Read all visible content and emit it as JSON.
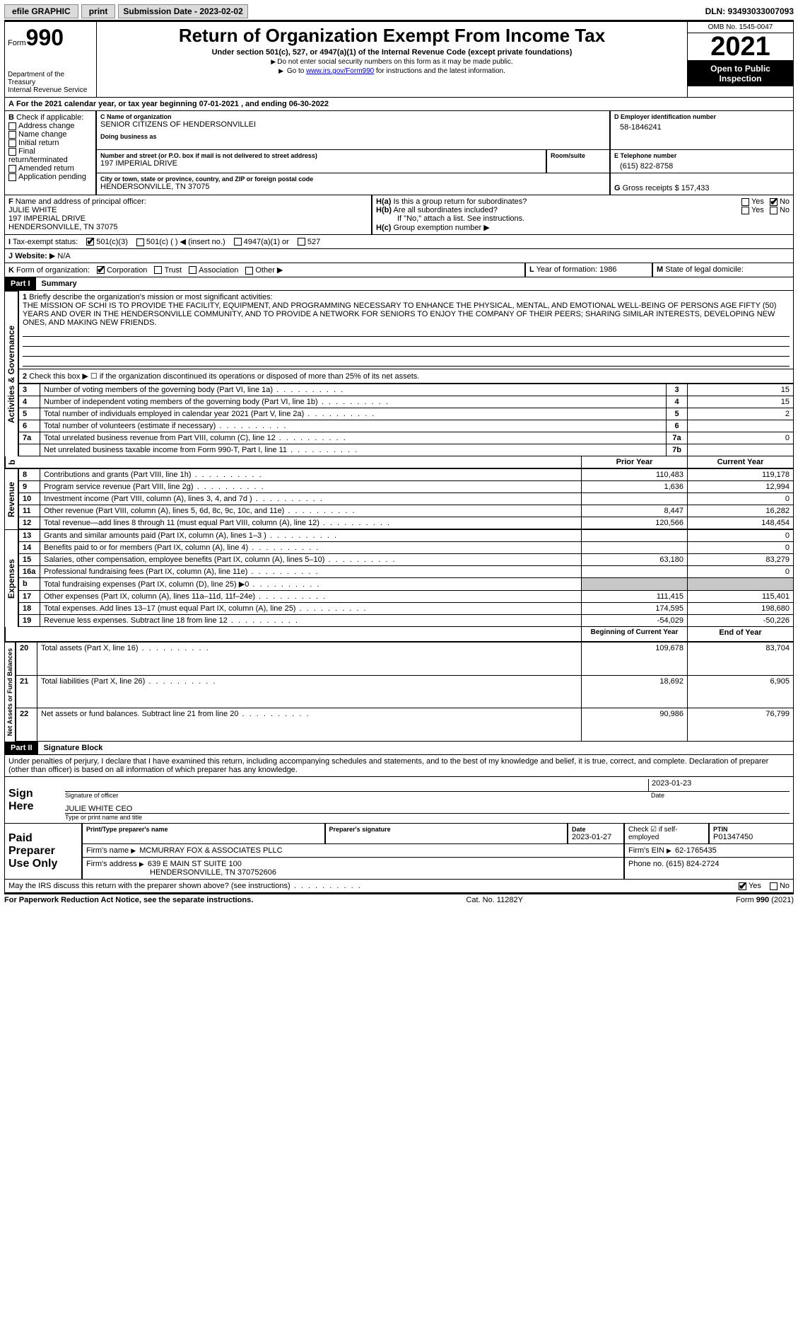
{
  "topbar": {
    "efile": "efile GRAPHIC",
    "print": "print",
    "sub_label": "Submission Date - 2023-02-02",
    "dln": "DLN: 93493033007093"
  },
  "header": {
    "form": "Form",
    "form_no": "990",
    "dept": "Department of the Treasury\nInternal Revenue Service",
    "title": "Return of Organization Exempt From Income Tax",
    "sub1": "Under section 501(c), 527, or 4947(a)(1) of the Internal Revenue Code (except private foundations)",
    "sub2": "Do not enter social security numbers on this form as it may be made public.",
    "sub3_a": "Go to ",
    "sub3_link": "www.irs.gov/Form990",
    "sub3_b": " for instructions and the latest information.",
    "omb": "OMB No. 1545-0047",
    "year": "2021",
    "open": "Open to Public Inspection"
  },
  "A": {
    "text": "For the 2021 calendar year, or tax year beginning 07-01-2021    , and ending 06-30-2022"
  },
  "B": {
    "label": "Check if applicable:",
    "items": [
      "Address change",
      "Name change",
      "Initial return",
      "Final return/terminated",
      "Amended return",
      "Application pending"
    ]
  },
  "C": {
    "name_lbl": "Name of organization",
    "name": "SENIOR CITIZENS OF HENDERSONVILLEI",
    "dba_lbl": "Doing business as",
    "street_lbl": "Number and street (or P.O. box if mail is not delivered to street address)",
    "street": "197 IMPERIAL DRIVE",
    "room_lbl": "Room/suite",
    "city_lbl": "City or town, state or province, country, and ZIP or foreign postal code",
    "city": "HENDERSONVILLE, TN  37075"
  },
  "D": {
    "lbl": "Employer identification number",
    "val": "58-1846241"
  },
  "E": {
    "lbl": "Telephone number",
    "val": "(615) 822-8758"
  },
  "G": {
    "lbl": "Gross receipts $",
    "val": "157,433"
  },
  "F": {
    "lbl": "Name and address of principal officer:",
    "name": "JULIE WHITE",
    "street": "197 IMPERIAL DRIVE",
    "city": "HENDERSONVILLE, TN  37075"
  },
  "H": {
    "a": "Is this a group return for subordinates?",
    "b": "Are all subordinates included?",
    "note": "If \"No,\" attach a list. See instructions.",
    "c": "Group exemption number",
    "yes": "Yes",
    "no": "No"
  },
  "I": {
    "lbl": "Tax-exempt status:",
    "opts": [
      "501(c)(3)",
      "501(c) (   ) ◀ (insert no.)",
      "4947(a)(1) or",
      "527"
    ]
  },
  "J": {
    "lbl": "Website:",
    "val": "N/A"
  },
  "K": {
    "lbl": "Form of organization:",
    "opts": [
      "Corporation",
      "Trust",
      "Association",
      "Other"
    ]
  },
  "L": {
    "lbl": "Year of formation:",
    "val": "1986"
  },
  "M": {
    "lbl": "State of legal domicile:"
  },
  "part1": {
    "hdr": "Part I",
    "title": "Summary",
    "q1_lbl": "Briefly describe the organization's mission or most significant activities:",
    "q1": "THE MISSION OF SCHI IS TO PROVIDE THE FACILITY, EQUIPMENT, AND PROGRAMMING NECESSARY TO ENHANCE THE PHYSICAL, MENTAL, AND EMOTIONAL WELL-BEING OF PERSONS AGE FIFTY (50) YEARS AND OVER IN THE HENDERSONVILLE COMMUNITY, AND TO PROVIDE A NETWORK FOR SENIORS TO ENJOY THE COMPANY OF THEIR PEERS; SHARING SIMILAR INTERESTS, DEVELOPING NEW ONES, AND MAKING NEW FRIENDS.",
    "q2": "Check this box ▶ ☐ if the organization discontinued its operations or disposed of more than 25% of its net assets.",
    "rows_gov": [
      {
        "n": "3",
        "t": "Number of voting members of the governing body (Part VI, line 1a)",
        "b": "3",
        "v": "15"
      },
      {
        "n": "4",
        "t": "Number of independent voting members of the governing body (Part VI, line 1b)",
        "b": "4",
        "v": "15"
      },
      {
        "n": "5",
        "t": "Total number of individuals employed in calendar year 2021 (Part V, line 2a)",
        "b": "5",
        "v": "2"
      },
      {
        "n": "6",
        "t": "Total number of volunteers (estimate if necessary)",
        "b": "6",
        "v": ""
      },
      {
        "n": "7a",
        "t": "Total unrelated business revenue from Part VIII, column (C), line 12",
        "b": "7a",
        "v": "0"
      },
      {
        "n": "",
        "t": "Net unrelated business taxable income from Form 990-T, Part I, line 11",
        "b": "7b",
        "v": ""
      }
    ],
    "col_prior": "Prior Year",
    "col_curr": "Current Year",
    "rows_rev": [
      {
        "n": "8",
        "t": "Contributions and grants (Part VIII, line 1h)",
        "p": "110,483",
        "c": "119,178"
      },
      {
        "n": "9",
        "t": "Program service revenue (Part VIII, line 2g)",
        "p": "1,636",
        "c": "12,994"
      },
      {
        "n": "10",
        "t": "Investment income (Part VIII, column (A), lines 3, 4, and 7d )",
        "p": "",
        "c": "0"
      },
      {
        "n": "11",
        "t": "Other revenue (Part VIII, column (A), lines 5, 6d, 8c, 9c, 10c, and 11e)",
        "p": "8,447",
        "c": "16,282"
      },
      {
        "n": "12",
        "t": "Total revenue—add lines 8 through 11 (must equal Part VIII, column (A), line 12)",
        "p": "120,566",
        "c": "148,454"
      }
    ],
    "rows_exp": [
      {
        "n": "13",
        "t": "Grants and similar amounts paid (Part IX, column (A), lines 1–3 )",
        "p": "",
        "c": "0"
      },
      {
        "n": "14",
        "t": "Benefits paid to or for members (Part IX, column (A), line 4)",
        "p": "",
        "c": "0"
      },
      {
        "n": "15",
        "t": "Salaries, other compensation, employee benefits (Part IX, column (A), lines 5–10)",
        "p": "63,180",
        "c": "83,279"
      },
      {
        "n": "16a",
        "t": "Professional fundraising fees (Part IX, column (A), line 11e)",
        "p": "",
        "c": "0"
      },
      {
        "n": "b",
        "t": "Total fundraising expenses (Part IX, column (D), line 25) ▶0",
        "p": "SHADE",
        "c": "SHADE"
      },
      {
        "n": "17",
        "t": "Other expenses (Part IX, column (A), lines 11a–11d, 11f–24e)",
        "p": "111,415",
        "c": "115,401"
      },
      {
        "n": "18",
        "t": "Total expenses. Add lines 13–17 (must equal Part IX, column (A), line 25)",
        "p": "174,595",
        "c": "198,680"
      },
      {
        "n": "19",
        "t": "Revenue less expenses. Subtract line 18 from line 12",
        "p": "-54,029",
        "c": "-50,226"
      }
    ],
    "col_beg": "Beginning of Current Year",
    "col_end": "End of Year",
    "rows_net": [
      {
        "n": "20",
        "t": "Total assets (Part X, line 16)",
        "p": "109,678",
        "c": "83,704"
      },
      {
        "n": "21",
        "t": "Total liabilities (Part X, line 26)",
        "p": "18,692",
        "c": "6,905"
      },
      {
        "n": "22",
        "t": "Net assets or fund balances. Subtract line 21 from line 20",
        "p": "90,986",
        "c": "76,799"
      }
    ],
    "vtabs": [
      "Activities & Governance",
      "Revenue",
      "Expenses",
      "Net Assets or Fund Balances"
    ]
  },
  "part2": {
    "hdr": "Part II",
    "title": "Signature Block",
    "decl": "Under penalties of perjury, I declare that I have examined this return, including accompanying schedules and statements, and to the best of my knowledge and belief, it is true, correct, and complete. Declaration of preparer (other than officer) is based on all information of which preparer has any knowledge.",
    "sign_here": "Sign Here",
    "sig_officer": "Signature of officer",
    "sig_date": "2023-01-23",
    "date_lbl": "Date",
    "officer_name": "JULIE WHITE CEO",
    "type_name": "Type or print name and title",
    "paid": "Paid Preparer Use Only",
    "p_name_lbl": "Print/Type preparer's name",
    "p_sig_lbl": "Preparer's signature",
    "p_date": "2023-01-27",
    "p_check": "Check ☑ if self-employed",
    "ptin_lbl": "PTIN",
    "ptin": "P01347450",
    "firm_name_lbl": "Firm's name",
    "firm_name": "MCMURRAY FOX & ASSOCIATES PLLC",
    "firm_ein_lbl": "Firm's EIN",
    "firm_ein": "62-1765435",
    "firm_addr_lbl": "Firm's address",
    "firm_addr": "639 E MAIN ST SUITE 100",
    "firm_city": "HENDERSONVILLE, TN  370752606",
    "firm_phone_lbl": "Phone no.",
    "firm_phone": "(615) 824-2724",
    "may_irs": "May the IRS discuss this return with the preparer shown above? (see instructions)"
  },
  "footer": {
    "left": "For Paperwork Reduction Act Notice, see the separate instructions.",
    "mid": "Cat. No. 11282Y",
    "right": "Form 990 (2021)"
  }
}
